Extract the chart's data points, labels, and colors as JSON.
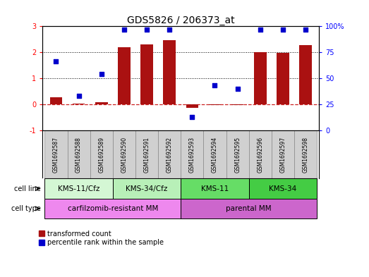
{
  "title": "GDS5826 / 206373_at",
  "samples": [
    "GSM1692587",
    "GSM1692588",
    "GSM1692589",
    "GSM1692590",
    "GSM1692591",
    "GSM1692592",
    "GSM1692593",
    "GSM1692594",
    "GSM1692595",
    "GSM1692596",
    "GSM1692597",
    "GSM1692598"
  ],
  "transformed_count": [
    0.28,
    0.02,
    0.07,
    2.2,
    2.3,
    2.47,
    -0.15,
    -0.04,
    -0.04,
    2.0,
    1.98,
    2.27
  ],
  "percentile_rank": [
    66,
    33,
    54,
    97,
    97,
    97,
    13,
    43,
    40,
    97,
    97,
    97
  ],
  "ylim_left": [
    -1,
    3
  ],
  "ylim_right": [
    0,
    100
  ],
  "yticks_left": [
    -1,
    0,
    1,
    2,
    3
  ],
  "yticks_right": [
    0,
    25,
    50,
    75,
    100
  ],
  "bar_color": "#aa1111",
  "scatter_color": "#0000cc",
  "zeroline_color": "#cc2222",
  "cell_line_groups": [
    {
      "label": "KMS-11/Cfz",
      "start": 0,
      "end": 2,
      "color": "#d4f7d4"
    },
    {
      "label": "KMS-34/Cfz",
      "start": 3,
      "end": 5,
      "color": "#b8f0b8"
    },
    {
      "label": "KMS-11",
      "start": 6,
      "end": 8,
      "color": "#66dd66"
    },
    {
      "label": "KMS-34",
      "start": 9,
      "end": 11,
      "color": "#44cc44"
    }
  ],
  "cell_type_groups": [
    {
      "label": "carfilzomib-resistant MM",
      "start": 0,
      "end": 5,
      "color": "#ee88ee"
    },
    {
      "label": "parental MM",
      "start": 6,
      "end": 11,
      "color": "#cc66cc"
    }
  ],
  "legend_items": [
    {
      "label": "transformed count",
      "color": "#aa1111"
    },
    {
      "label": "percentile rank within the sample",
      "color": "#0000cc"
    }
  ],
  "sample_box_color": "#d0d0d0",
  "background_color": "#ffffff",
  "title_fontsize": 10,
  "tick_fontsize": 7,
  "label_fontsize": 7,
  "annot_fontsize": 7.5
}
